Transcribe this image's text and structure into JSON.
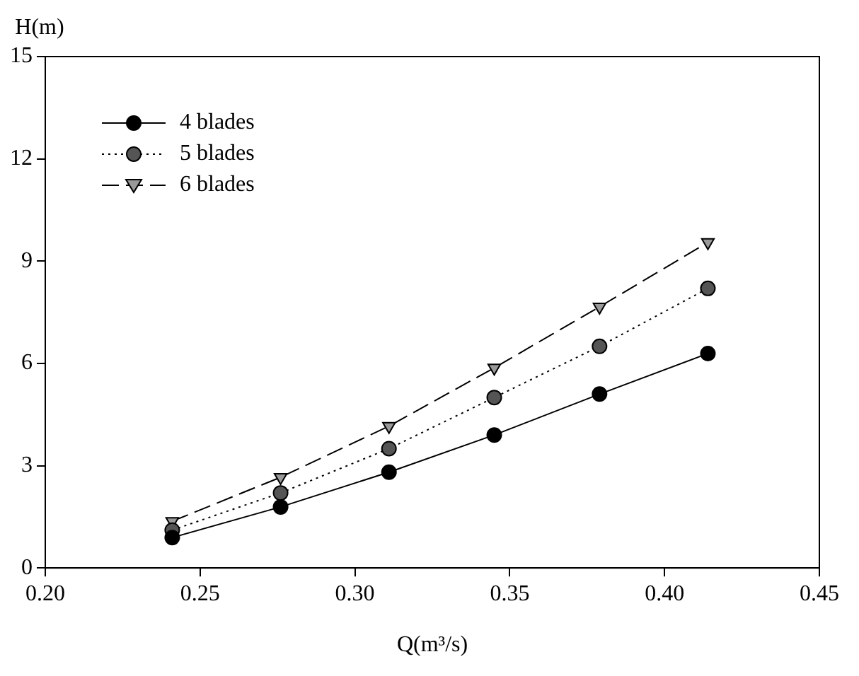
{
  "chart_data": {
    "type": "line",
    "xlabel": "Q(m³/s)",
    "ylabel": "H(m)",
    "x": [
      0.241,
      0.276,
      0.311,
      0.345,
      0.379,
      0.414
    ],
    "xlim": [
      0.2,
      0.45
    ],
    "xticks": [
      {
        "value": 0.2,
        "label": "0.20"
      },
      {
        "value": 0.25,
        "label": "0.25"
      },
      {
        "value": 0.3,
        "label": "0.30"
      },
      {
        "value": 0.35,
        "label": "0.35"
      },
      {
        "value": 0.4,
        "label": "0.40"
      },
      {
        "value": 0.45,
        "label": "0.45"
      }
    ],
    "ylim": [
      0,
      15
    ],
    "yticks": [
      0,
      3,
      6,
      9,
      12,
      15
    ],
    "grid": false,
    "legend": "top left",
    "series": [
      {
        "name": "4 blades",
        "color": "#000000",
        "marker": "circle",
        "line_style": "solid",
        "values": [
          0.89,
          1.79,
          2.81,
          3.9,
          5.1,
          6.29
        ]
      },
      {
        "name": "5 blades",
        "color": "#555555",
        "marker": "circle",
        "line_style": "dotted",
        "values": [
          1.11,
          2.2,
          3.5,
          5.0,
          6.5,
          8.2
        ]
      },
      {
        "name": "6 blades",
        "color": "#999999",
        "marker": "triangle",
        "line_style": "dashed",
        "values": [
          1.37,
          2.66,
          4.16,
          5.87,
          7.66,
          9.55
        ]
      }
    ]
  }
}
